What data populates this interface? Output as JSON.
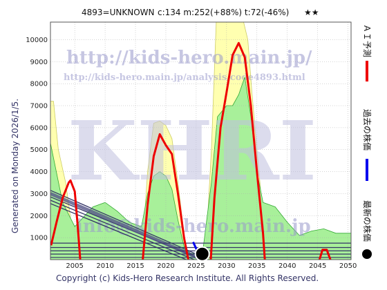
{
  "header": {
    "code_line": "4893=UNKNOWN",
    "stats": "c:134  m:252(+88%)  t:72(-46%)",
    "stars": "★★"
  },
  "side_note": "Generated on Monday 2026/1/5.",
  "footer": "Copyright (c) Kids-Hero Research Institute. All Rights Reserved.",
  "watermarks": {
    "url_main": "http://kids-hero.main.jp/",
    "url_analysis": "http://kids-hero.main.jp/analysis/code4893.html",
    "logo": "KHRI",
    "email": "info@kids-hero.main.jp"
  },
  "legend": [
    {
      "label": "ＡＩ予測",
      "color": "#ee0000",
      "marker": "line"
    },
    {
      "label": "過去の株価",
      "color": "#0000ee",
      "marker": "line"
    },
    {
      "label": "最新の株価",
      "color": "#000000",
      "marker": "dot"
    }
  ],
  "colors": {
    "ai_line": "#ee0000",
    "past_line": "#0000ee",
    "yellow_band": "#ffffb0",
    "green_band": "#a8f09a",
    "green_edge": "#33aa33",
    "channel": "#333366",
    "grid": "#aaaaaa"
  },
  "chart_data": {
    "type": "line",
    "xlim": [
      2001,
      2050.5
    ],
    "ylim": [
      0,
      10800
    ],
    "x_ticks": [
      2005,
      2010,
      2015,
      2020,
      2025,
      2030,
      2035,
      2040,
      2045,
      2050
    ],
    "y_ticks": [
      1000,
      2000,
      3000,
      4000,
      5000,
      6000,
      7000,
      8000,
      9000,
      10000
    ],
    "grid": true,
    "series": [
      {
        "name": "ＡＩ予測",
        "points": [
          [
            2001.1,
            650
          ],
          [
            2002,
            1700
          ],
          [
            2003,
            2800
          ],
          [
            2004,
            3500
          ],
          [
            2004.3,
            3600
          ],
          [
            2005,
            3100
          ],
          [
            2005.5,
            1500
          ],
          [
            2005.9,
            0
          ],
          [
            2016.2,
            0
          ],
          [
            2017,
            2500
          ],
          [
            2018,
            4700
          ],
          [
            2019,
            5700
          ],
          [
            2020,
            5200
          ],
          [
            2021,
            4800
          ],
          [
            2022,
            3000
          ],
          [
            2023,
            1000
          ],
          [
            2023.7,
            0
          ],
          [
            2027.4,
            0
          ],
          [
            2028,
            2800
          ],
          [
            2029,
            6000
          ],
          [
            2030,
            7600
          ],
          [
            2031,
            9300
          ],
          [
            2032,
            9850
          ],
          [
            2033,
            9200
          ],
          [
            2034,
            7000
          ],
          [
            2035,
            4000
          ],
          [
            2036,
            1200
          ],
          [
            2036.3,
            0
          ],
          [
            2045.3,
            0
          ],
          [
            2045.8,
            450
          ],
          [
            2046.5,
            450
          ],
          [
            2047.1,
            0
          ]
        ]
      },
      {
        "name": "過去の株価",
        "points": [
          [
            2024.5,
            800
          ],
          [
            2025,
            500
          ],
          [
            2025.5,
            300
          ],
          [
            2026,
            134
          ]
        ]
      },
      {
        "name": "最新の株価",
        "points": [
          [
            2026,
            134
          ]
        ]
      }
    ],
    "bands": [
      {
        "kind": "yellow",
        "upper": [
          [
            2001,
            7200
          ],
          [
            2001.5,
            7200
          ],
          [
            2002.3,
            5000
          ],
          [
            2003.5,
            3500
          ],
          [
            2004.5,
            1500
          ],
          [
            2005.5,
            0
          ],
          [
            2016,
            0
          ],
          [
            2017,
            4000
          ],
          [
            2018,
            6200
          ],
          [
            2019,
            6300
          ],
          [
            2020,
            6100
          ],
          [
            2021,
            5500
          ],
          [
            2022,
            3500
          ],
          [
            2023,
            1200
          ],
          [
            2023.6,
            0
          ],
          [
            2026.5,
            0
          ],
          [
            2027.5,
            5000
          ],
          [
            2028.3,
            10800
          ],
          [
            2032,
            10800
          ],
          [
            2032.8,
            10800
          ],
          [
            2033.5,
            10000
          ],
          [
            2034.2,
            7500
          ],
          [
            2035,
            5000
          ],
          [
            2036,
            2000
          ],
          [
            2036.6,
            0
          ],
          [
            2050.5,
            0
          ]
        ],
        "lower": [
          [
            2001,
            0
          ],
          [
            2050.5,
            0
          ]
        ]
      },
      {
        "kind": "green",
        "upper": [
          [
            2001,
            5300
          ],
          [
            2003,
            2600
          ],
          [
            2005,
            1500
          ],
          [
            2006,
            1800
          ],
          [
            2008,
            2400
          ],
          [
            2010,
            2600
          ],
          [
            2012,
            2200
          ],
          [
            2014,
            1700
          ],
          [
            2016,
            1500
          ],
          [
            2017,
            3000
          ],
          [
            2018,
            3800
          ],
          [
            2019,
            4000
          ],
          [
            2020,
            3800
          ],
          [
            2021,
            3200
          ],
          [
            2022,
            1800
          ],
          [
            2023,
            600
          ],
          [
            2024,
            300
          ],
          [
            2026,
            200
          ],
          [
            2027.5,
            3500
          ],
          [
            2028.5,
            6500
          ],
          [
            2030,
            7000
          ],
          [
            2031,
            7000
          ],
          [
            2032,
            7500
          ],
          [
            2033,
            8300
          ],
          [
            2034,
            6500
          ],
          [
            2035,
            4000
          ],
          [
            2036,
            2600
          ],
          [
            2038,
            2400
          ],
          [
            2040,
            1700
          ],
          [
            2042,
            1100
          ],
          [
            2044,
            1300
          ],
          [
            2046,
            1400
          ],
          [
            2048,
            1200
          ],
          [
            2050.5,
            1200
          ]
        ],
        "lower": [
          [
            2001,
            0
          ],
          [
            2050.5,
            0
          ]
        ]
      }
    ],
    "channel_lines": [
      {
        "points": [
          [
            2001,
            3150
          ],
          [
            2026,
            134
          ]
        ]
      },
      {
        "points": [
          [
            2001,
            2850
          ],
          [
            2026,
            0
          ]
        ]
      },
      {
        "points": [
          [
            2001,
            2700
          ],
          [
            2026,
            -150
          ]
        ]
      },
      {
        "points": [
          [
            2001,
            2550
          ],
          [
            2026,
            -300
          ]
        ]
      }
    ],
    "horizontal_lines": [
      750,
      550,
      400,
      250,
      100
    ]
  }
}
